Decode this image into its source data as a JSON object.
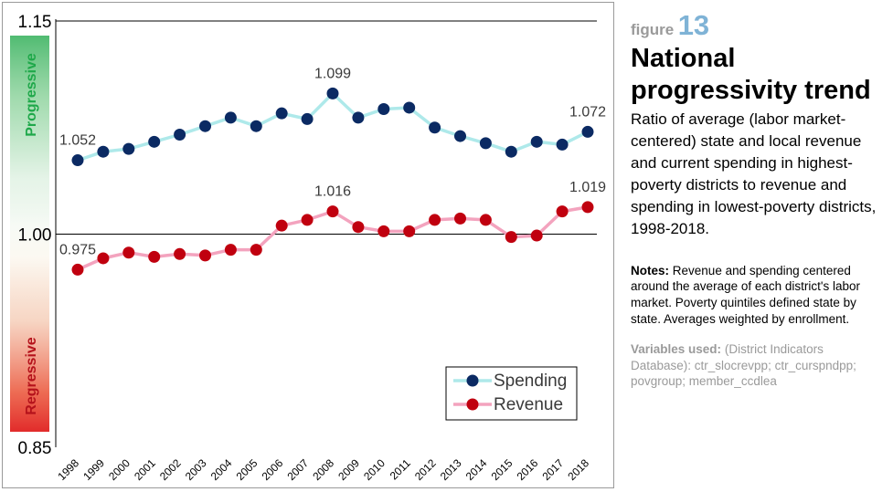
{
  "figure": {
    "label": "figure",
    "number": "13",
    "title": "National progressivity trend",
    "description": "Ratio of average (labor market-centered) state and local revenue and current spending in highest-poverty districts to revenue and spending in lowest-poverty districts, 1998-2018.",
    "notes_label": "Notes:",
    "notes_text": "Revenue and spending centered around the average of each district's labor market. Poverty quintiles defined state by state. Averages weighted by  enrollment.",
    "vars_label": "Variables used:",
    "vars_text": "(District Indicators Database): ctr_slocrevpp; ctr_curspndpp; povgroup; member_ccdlea"
  },
  "chart_data": {
    "type": "line",
    "categories": [
      "1998",
      "1999",
      "2000",
      "2001",
      "2002",
      "2003",
      "2004",
      "2005",
      "2006",
      "2007",
      "2008",
      "2009",
      "2010",
      "2011",
      "2012",
      "2013",
      "2014",
      "2015",
      "2016",
      "2017",
      "2018"
    ],
    "series": [
      {
        "name": "Spending",
        "values": [
          1.052,
          1.058,
          1.06,
          1.065,
          1.07,
          1.076,
          1.082,
          1.076,
          1.085,
          1.081,
          1.099,
          1.082,
          1.088,
          1.089,
          1.075,
          1.069,
          1.064,
          1.058,
          1.065,
          1.063,
          1.072
        ],
        "line_color": "#aee9ea",
        "marker_color": "#0b2a63"
      },
      {
        "name": "Revenue",
        "values": [
          0.975,
          0.983,
          0.987,
          0.984,
          0.986,
          0.985,
          0.989,
          0.989,
          1.006,
          1.01,
          1.016,
          1.005,
          1.002,
          1.002,
          1.01,
          1.011,
          1.01,
          0.998,
          0.999,
          1.016,
          1.019
        ],
        "line_color": "#f3a3be",
        "marker_color": "#c0000f"
      }
    ],
    "data_labels": [
      {
        "series": "Spending",
        "category": "1998",
        "text": "1.052"
      },
      {
        "series": "Spending",
        "category": "2008",
        "text": "1.099"
      },
      {
        "series": "Spending",
        "category": "2018",
        "text": "1.072"
      },
      {
        "series": "Revenue",
        "category": "1998",
        "text": "0.975"
      },
      {
        "series": "Revenue",
        "category": "2008",
        "text": "1.016"
      },
      {
        "series": "Revenue",
        "category": "2018",
        "text": "1.019"
      }
    ],
    "y_ticks": [
      "0.85",
      "1.00",
      "1.15"
    ],
    "ylim": [
      0.85,
      1.15
    ],
    "reference_line": 1.0,
    "band_labels": {
      "top": "Progressive",
      "bottom": "Regressive"
    },
    "band_colors": {
      "progressive": "#1fa84a",
      "regressive": "#e0201f"
    },
    "legend_position": "bottom-right",
    "xlabel": "",
    "ylabel": "",
    "title": ""
  }
}
